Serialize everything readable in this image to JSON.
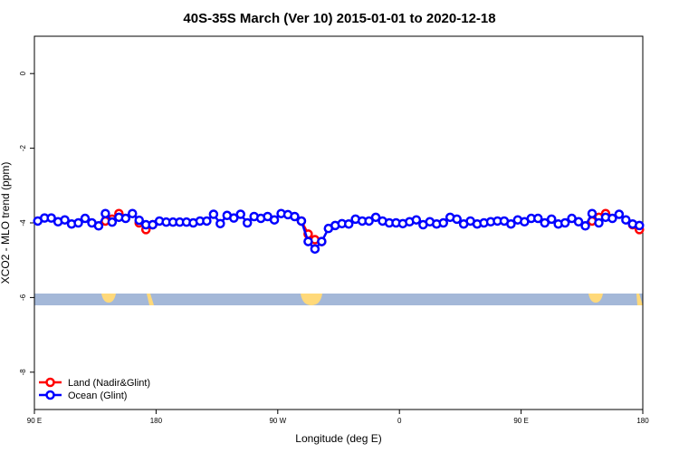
{
  "chart_data": {
    "type": "line",
    "title": "40S-35S March (Ver 10)   2015-01-01 to 2020-12-18",
    "xlabel": "Longitude (deg E)",
    "ylabel": "XCO2 - MLO trend (ppm)",
    "xlim": [
      90,
      540
    ],
    "ylim": [
      -9,
      1
    ],
    "xticks": [
      {
        "value": 90,
        "label": "90 E"
      },
      {
        "value": 180,
        "label": "180"
      },
      {
        "value": 270,
        "label": "90 W"
      },
      {
        "value": 360,
        "label": "0"
      },
      {
        "value": 450,
        "label": "90 E"
      },
      {
        "value": 540,
        "label": "180"
      }
    ],
    "yticks": [
      -8,
      -6,
      -4,
      -2,
      0
    ],
    "legend": "bottom-left",
    "x": [
      92.5,
      97.5,
      102.5,
      107.5,
      112.5,
      117.5,
      122.5,
      127.5,
      132.5,
      137.5,
      142.5,
      147.5,
      152.5,
      157.5,
      162.5,
      167.5,
      172.5,
      177.5,
      182.5,
      187.5,
      192.5,
      197.5,
      202.5,
      207.5,
      212.5,
      217.5,
      222.5,
      227.5,
      232.5,
      237.5,
      242.5,
      247.5,
      252.5,
      257.5,
      262.5,
      267.5,
      272.5,
      277.5,
      282.5,
      287.5,
      292.5,
      297.5,
      302.5,
      307.5,
      312.5,
      317.5,
      322.5,
      327.5,
      332.5,
      337.5,
      342.5,
      347.5,
      352.5,
      357.5,
      362.5,
      367.5,
      372.5,
      377.5,
      382.5,
      387.5,
      392.5,
      397.5,
      402.5,
      407.5,
      412.5,
      417.5,
      422.5,
      427.5,
      432.5,
      437.5,
      442.5,
      447.5,
      452.5,
      457.5,
      462.5,
      467.5,
      472.5,
      477.5,
      482.5,
      487.5,
      492.5,
      497.5,
      502.5,
      507.5,
      512.5,
      517.5,
      522.5,
      527.5,
      532.5,
      537.5
    ],
    "series": [
      {
        "name": "Land (Nadir&Glint)",
        "color": "#ff0000",
        "values": [
          null,
          null,
          null,
          null,
          null,
          null,
          null,
          null,
          null,
          null,
          -3.95,
          -3.9,
          -3.75,
          null,
          null,
          -4.0,
          -4.18,
          -4.05,
          null,
          null,
          null,
          null,
          null,
          null,
          null,
          null,
          null,
          null,
          null,
          null,
          null,
          null,
          null,
          null,
          null,
          null,
          null,
          null,
          null,
          -3.95,
          -4.3,
          -4.45,
          -4.5,
          null,
          null,
          null,
          null,
          null,
          null,
          null,
          null,
          null,
          null,
          null,
          null,
          null,
          null,
          null,
          null,
          null,
          null,
          null,
          null,
          null,
          null,
          null,
          null,
          null,
          null,
          null,
          null,
          null,
          null,
          null,
          null,
          null,
          null,
          null,
          null,
          null,
          null,
          null,
          -3.95,
          -3.85,
          -3.75,
          null,
          null,
          null,
          -4.05,
          -4.18
        ]
      },
      {
        "name": "Ocean (Glint)",
        "color": "#0000ff",
        "values": [
          -3.95,
          -3.87,
          -3.87,
          -3.97,
          -3.92,
          -4.03,
          -4.0,
          -3.88,
          -4.0,
          -4.08,
          -3.75,
          -3.98,
          -3.85,
          -3.88,
          -3.75,
          -3.93,
          -4.05,
          -4.05,
          -3.95,
          -3.98,
          -3.98,
          -3.98,
          -3.98,
          -4.0,
          -3.95,
          -3.95,
          -3.77,
          -4.02,
          -3.8,
          -3.87,
          -3.77,
          -4.0,
          -3.83,
          -3.88,
          -3.83,
          -3.92,
          -3.75,
          -3.78,
          -3.83,
          -3.95,
          -4.5,
          -4.7,
          -4.5,
          -4.15,
          -4.07,
          -4.02,
          -4.03,
          -3.9,
          -3.95,
          -3.95,
          -3.85,
          -3.95,
          -4.0,
          -4.0,
          -4.02,
          -3.97,
          -3.92,
          -4.05,
          -3.97,
          -4.03,
          -4.0,
          -3.85,
          -3.9,
          -4.03,
          -3.95,
          -4.03,
          -4.0,
          -3.97,
          -3.95,
          -3.95,
          -4.03,
          -3.92,
          -3.97,
          -3.88,
          -3.88,
          -4.0,
          -3.9,
          -4.03,
          -4.0,
          -3.88,
          -3.97,
          -4.08,
          -3.75,
          -4.0,
          -3.85,
          -3.88,
          -3.77,
          -3.92,
          -4.03,
          -4.07
        ]
      }
    ]
  }
}
